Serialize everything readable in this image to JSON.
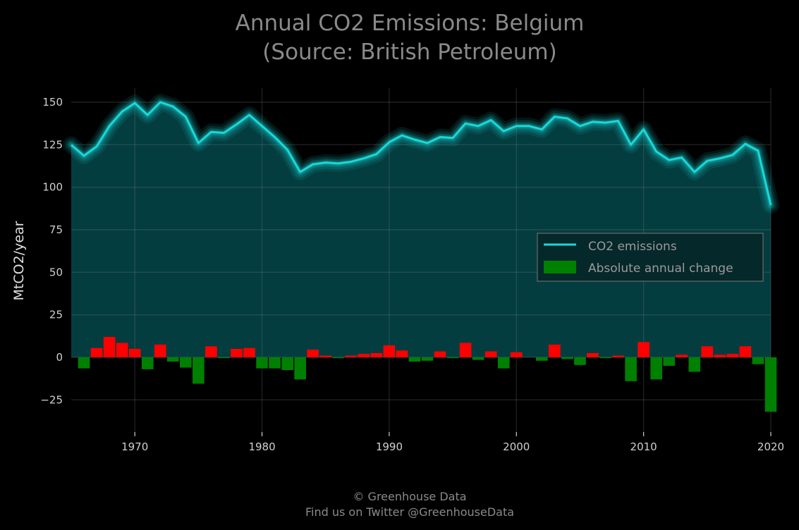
{
  "chart_data": {
    "type": "line",
    "title": "Annual CO2 Emissions: Belgium",
    "subtitle": "(Source: British Petroleum)",
    "xlabel": "",
    "ylabel": "MtCO2/year",
    "xlim": [
      1965,
      2020
    ],
    "ylim": [
      -42,
      158
    ],
    "x_ticks": [
      1970,
      1980,
      1990,
      2000,
      2010,
      2020
    ],
    "y_ticks": [
      -25,
      0,
      25,
      50,
      75,
      100,
      125,
      150
    ],
    "y_tick_labels": [
      "−25",
      "0",
      "25",
      "50",
      "75",
      "100",
      "125",
      "150"
    ],
    "grid": true,
    "legend_position": "center-right",
    "years": [
      1965,
      1966,
      1967,
      1968,
      1969,
      1970,
      1971,
      1972,
      1973,
      1974,
      1975,
      1976,
      1977,
      1978,
      1979,
      1980,
      1981,
      1982,
      1983,
      1984,
      1985,
      1986,
      1987,
      1988,
      1989,
      1990,
      1991,
      1992,
      1993,
      1994,
      1995,
      1996,
      1997,
      1998,
      1999,
      2000,
      2001,
      2002,
      2003,
      2004,
      2005,
      2006,
      2007,
      2008,
      2009,
      2010,
      2011,
      2012,
      2013,
      2014,
      2015,
      2016,
      2017,
      2018,
      2019,
      2020
    ],
    "series": [
      {
        "name": "CO2 emissions",
        "color": "#1ad8d8",
        "values": [
          125,
          118.5,
          124,
          136,
          144.5,
          149.5,
          142.5,
          150,
          147.5,
          141.5,
          126,
          132.5,
          132,
          137,
          142.5,
          136,
          129.5,
          122,
          109,
          113.5,
          114.5,
          114,
          115,
          117,
          119.5,
          126.5,
          130.5,
          128,
          126,
          129.5,
          129,
          137.5,
          136,
          139.5,
          133,
          136,
          136,
          134,
          141.5,
          140.5,
          136,
          138.5,
          138,
          139,
          125,
          134,
          121,
          116,
          117.5,
          109,
          115.5,
          117,
          119,
          125.5,
          121.5,
          89.5
        ]
      },
      {
        "name": "Absolute annual change",
        "color": "#008000",
        "values": [
          null,
          -6.5,
          5.5,
          12,
          8.5,
          5,
          -7,
          7.5,
          -2.5,
          -6,
          -15.5,
          6.5,
          -0.5,
          5,
          5.5,
          -6.5,
          -6.5,
          -7.5,
          -13,
          4.5,
          1,
          -0.5,
          1,
          2,
          2.5,
          7,
          4,
          -2.5,
          -2,
          3.5,
          -0.5,
          8.5,
          -1.5,
          3.5,
          -6.5,
          3,
          0,
          -2,
          7.5,
          -1,
          -4.5,
          2.5,
          -0.5,
          1,
          -14,
          9,
          -13,
          -5,
          1.5,
          -8.5,
          6.5,
          1.5,
          2,
          6.5,
          -4,
          -32
        ]
      }
    ],
    "positive_change_color": "#ff0000",
    "negative_change_color": "#008000",
    "area_fill_color": "#043d40"
  },
  "footer": {
    "line1": "© Greenhouse Data",
    "line2": "Find us on Twitter @GreenhouseData"
  }
}
